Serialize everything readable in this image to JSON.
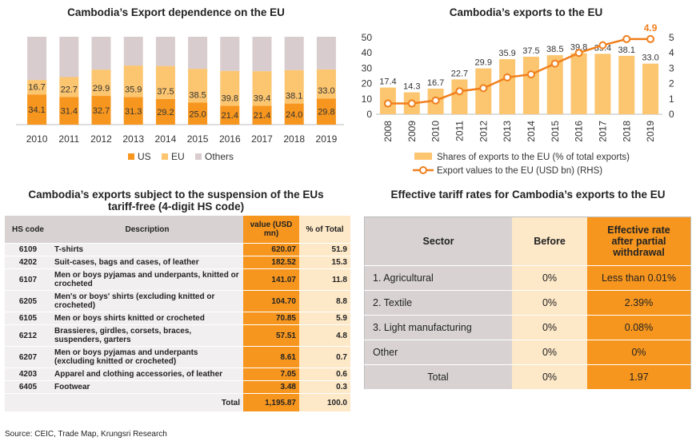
{
  "chart1": {
    "title": "Cambodia’s Export dependence on the EU",
    "chart_data": {
      "type": "bar",
      "stacked": true,
      "categories": [
        "2010",
        "2011",
        "2012",
        "2013",
        "2014",
        "2015",
        "2016",
        "2017",
        "2018",
        "2019"
      ],
      "series": [
        {
          "name": "US",
          "color": "#f7961e",
          "values": [
            34.1,
            31.4,
            32.7,
            31.3,
            29.2,
            25.0,
            21.4,
            21.4,
            24.0,
            29.8
          ]
        },
        {
          "name": "EU",
          "color": "#fcc56f",
          "values": [
            16.7,
            22.7,
            29.9,
            35.9,
            37.5,
            38.5,
            39.8,
            39.4,
            38.1,
            33.0
          ]
        },
        {
          "name": "Others",
          "color": "#d8ccce",
          "values": [
            49.2,
            45.9,
            37.4,
            32.8,
            33.3,
            36.5,
            38.8,
            39.2,
            37.9,
            37.2
          ]
        }
      ],
      "ylim": [
        0,
        100
      ],
      "legend": "bottom"
    }
  },
  "chart2": {
    "title": "Cambodia’s exports to the EU",
    "chart_data": {
      "type": "bar",
      "categories": [
        "2008",
        "2009",
        "2010",
        "2011",
        "2012",
        "2013",
        "2014",
        "2015",
        "2016",
        "2017",
        "2018",
        "2019"
      ],
      "series": [
        {
          "name": "Shares of exports to the EU  (% of total exports)",
          "type": "bar",
          "axis": "left",
          "color": "#fcc56f",
          "values": [
            17.4,
            14.3,
            16.7,
            22.7,
            29.9,
            35.9,
            37.5,
            38.5,
            39.8,
            39.4,
            38.1,
            33.0
          ]
        },
        {
          "name": "Export values to the EU (USD bn) (RHS)",
          "type": "line",
          "axis": "right",
          "color": "#f07f1c",
          "values": [
            0.7,
            0.7,
            0.9,
            1.5,
            1.7,
            2.4,
            2.6,
            3.3,
            4.0,
            4.5,
            4.9,
            4.9
          ]
        }
      ],
      "ylim_left": [
        0,
        50
      ],
      "yticks_left": [
        "0",
        "10",
        "20",
        "30",
        "40",
        "50"
      ],
      "ylim_right": [
        0,
        5
      ],
      "yticks_right": [
        "0",
        "1",
        "2",
        "3",
        "4",
        "5"
      ],
      "annotation": "4.9",
      "legend": "bottom"
    }
  },
  "table1": {
    "title": "Cambodia’s exports subject to the suspension of the EUs tariff-free (4-digit HS code)",
    "headers": [
      "HS code",
      "Description",
      "value (USD mn)",
      "% of Total"
    ],
    "rows": [
      {
        "code": "6109",
        "desc": "T-shirts",
        "value": "620.07",
        "pct": "51.9"
      },
      {
        "code": "4202",
        "desc": "Suit-cases, bags and cases, of leather",
        "value": "182.52",
        "pct": "15.3"
      },
      {
        "code": "6107",
        "desc": "Men or boys pyjamas and underpants, knitted or crocheted",
        "value": "141.07",
        "pct": "11.8"
      },
      {
        "code": "6205",
        "desc": "Men's or boys' shirts (excluding knitted or crocheted)",
        "value": "104.70",
        "pct": "8.8"
      },
      {
        "code": "6105",
        "desc": "Men or boys shirts knitted or crocheted",
        "value": "70.85",
        "pct": "5.9"
      },
      {
        "code": "6212",
        "desc": "Brassieres, girdles, corsets, braces, suspenders, garters",
        "value": "57.51",
        "pct": "4.8"
      },
      {
        "code": "6207",
        "desc": "Men or boys pyjamas and underpants (excluding knitted or crocheted)",
        "value": "8.61",
        "pct": "0.7"
      },
      {
        "code": "4203",
        "desc": "Apparel and clothing accessories, of leather",
        "value": "7.05",
        "pct": "0.6"
      },
      {
        "code": "6405",
        "desc": "Footwear",
        "value": "3.48",
        "pct": "0.3"
      }
    ],
    "total": {
      "label": "Total",
      "value": "1,195.87",
      "pct": "100.0"
    }
  },
  "table2": {
    "title": "Effective tariff rates for Cambodia’s exports to the EU",
    "headers": [
      "Sector",
      "Before",
      "Effective rate after partial withdrawal"
    ],
    "rows": [
      {
        "sector": "1. Agricultural",
        "before": "0%",
        "after": "Less than 0.01%"
      },
      {
        "sector": "2. Textile",
        "before": "0%",
        "after": "2.39%"
      },
      {
        "sector": "3.  Light manufacturing",
        "before": "0%",
        "after": "0.08%"
      },
      {
        "sector": "Other",
        "before": "0%",
        "after": "0%"
      },
      {
        "sector": "Total",
        "before": "0%",
        "after": "1.97"
      }
    ]
  },
  "source": "Source: CEIC, Trade Map, Krungsri Research"
}
